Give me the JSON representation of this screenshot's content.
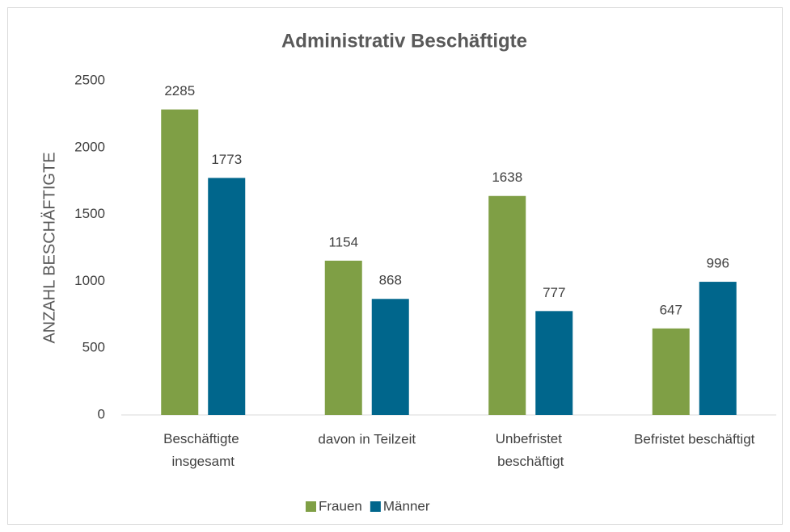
{
  "chart_data": {
    "type": "bar",
    "title": "Administrativ Beschäftigte",
    "y_label": "ANZAHL BESCHÄFTIGTE",
    "categories": [
      "Beschäftigte insgesamt",
      "davon in Teilzeit",
      "Unbefristet beschäftigt",
      "Befristet beschäftigt"
    ],
    "series": [
      {
        "name": "Frauen",
        "color": "#7f9f45",
        "values": [
          2285,
          1154,
          1638,
          647
        ]
      },
      {
        "name": "Männer",
        "color": "#00668c",
        "values": [
          1773,
          868,
          777,
          996
        ]
      }
    ],
    "ylim": [
      0,
      2500
    ],
    "yticks": [
      0,
      500,
      1000,
      1500,
      2000,
      2500
    ],
    "grid": false,
    "legend": "bottom"
  }
}
